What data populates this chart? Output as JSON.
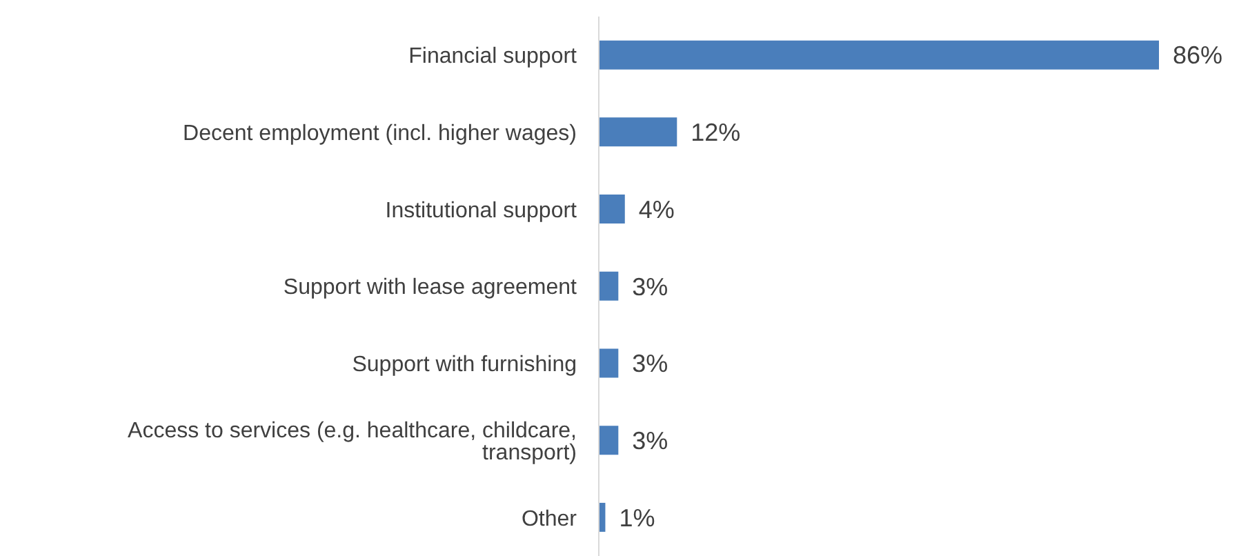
{
  "chart_data": {
    "type": "bar",
    "orientation": "horizontal",
    "categories": [
      "Financial support",
      "Decent employment (incl. higher wages)",
      "Institutional support",
      "Support with lease agreement",
      "Support with furnishing",
      "Access to services (e.g. healthcare, childcare, transport)",
      "Other"
    ],
    "values": [
      86,
      12,
      4,
      3,
      3,
      3,
      1
    ],
    "value_labels": [
      "86%",
      "12%",
      "4%",
      "3%",
      "3%",
      "3%",
      "1%"
    ],
    "color": "#4a7ebb",
    "tick_labels": "y"
  }
}
